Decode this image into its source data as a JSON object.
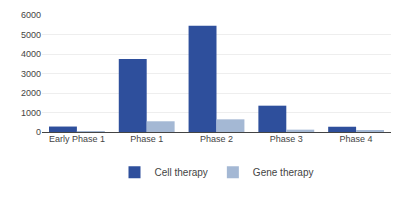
{
  "chart_data": {
    "type": "bar",
    "categories": [
      "Early Phase 1",
      "Phase 1",
      "Phase 2",
      "Phase 3",
      "Phase 4"
    ],
    "series": [
      {
        "name": "Cell therapy",
        "color": "#2e4f9c",
        "values": [
          280,
          3750,
          5450,
          1350,
          270
        ]
      },
      {
        "name": "Gene therapy",
        "color": "#a4b8d4",
        "values": [
          50,
          550,
          650,
          120,
          70
        ]
      }
    ],
    "ylim": [
      0,
      6000
    ],
    "yticks": [
      0,
      1000,
      2000,
      3000,
      4000,
      5000,
      6000
    ],
    "grid": true,
    "legend": "bottom"
  }
}
